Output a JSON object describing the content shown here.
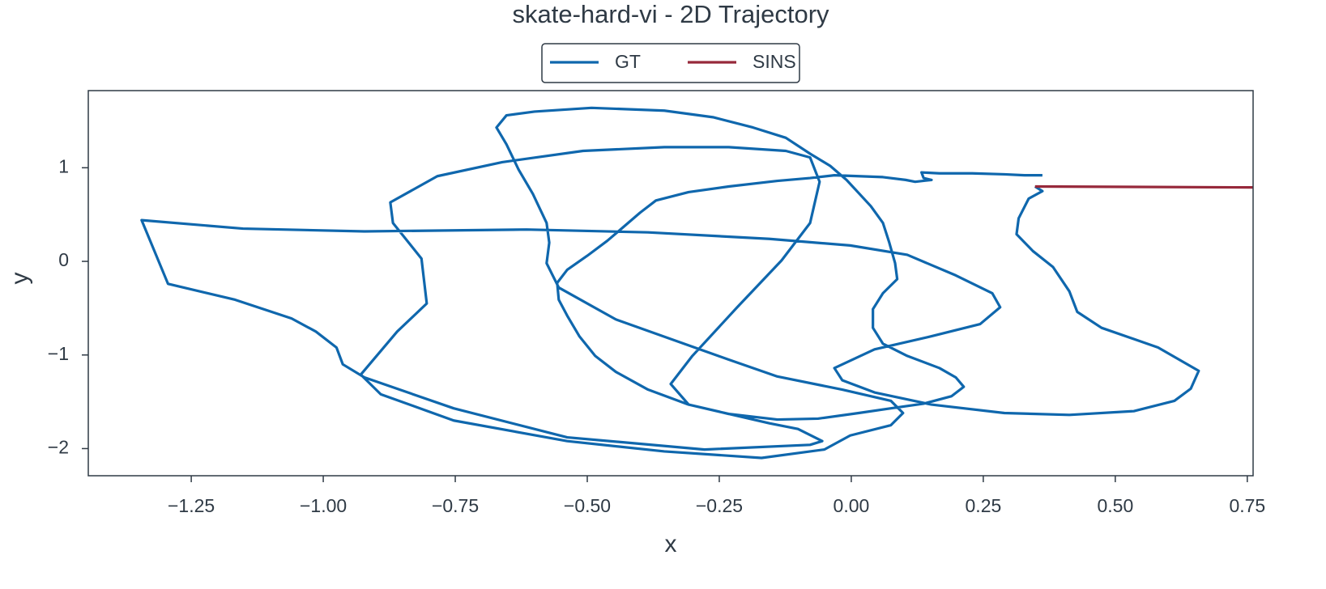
{
  "chart_data": {
    "type": "line",
    "title": "skate-hard-vi - 2D Trajectory",
    "x_label": "x",
    "y_label": "y",
    "xlim": [
      -1.445,
      0.761
    ],
    "ylim": [
      -2.29,
      1.824
    ],
    "xticks": [
      {
        "value": -1.25,
        "label": "−1.25"
      },
      {
        "value": -1.0,
        "label": "−1.00"
      },
      {
        "value": -0.75,
        "label": "−0.75"
      },
      {
        "value": -0.5,
        "label": "−0.50"
      },
      {
        "value": -0.25,
        "label": "−0.25"
      },
      {
        "value": 0,
        "label": "0.00"
      },
      0.25,
      {
        "value": 0.5,
        "label": "0.50"
      },
      0.75
    ],
    "yticks": [
      {
        "value": -2,
        "label": "−2"
      },
      {
        "value": -1,
        "label": "−1"
      },
      0,
      1
    ],
    "series": [
      {
        "name": "GT",
        "color": "#0f67ad",
        "x": [
          0.362,
          0.328,
          0.29,
          0.229,
          0.167,
          0.133,
          0.137,
          0.152,
          0.121,
          0.103,
          0.06,
          0.014,
          -0.032,
          -0.078,
          -0.14,
          -0.232,
          -0.308,
          -0.37,
          -0.4,
          -0.431,
          -0.462,
          -0.5,
          -0.538,
          -0.557,
          -0.554,
          -0.538,
          -0.515,
          -0.485,
          -0.446,
          -0.385,
          -0.308,
          -0.232,
          -0.14,
          -0.063,
          0.014,
          0.075,
          0.137,
          0.19,
          0.213,
          0.198,
          0.167,
          0.106,
          0.06,
          0.041,
          0.041,
          0.06,
          0.087,
          0.083,
          0.072,
          0.06,
          0.037,
          0.014,
          -0.009,
          -0.04,
          -0.078,
          -0.124,
          -0.186,
          -0.262,
          -0.354,
          -0.492,
          -0.6,
          -0.653,
          -0.672,
          -0.653,
          -0.63,
          -0.603,
          -0.577,
          -0.572,
          -0.577,
          -0.554,
          -0.446,
          -0.232,
          -0.14,
          -0.017,
          0.075,
          0.098,
          0.075,
          -0.002,
          -0.051,
          -0.17,
          -0.354,
          -0.538,
          -0.753,
          -0.891,
          -0.929,
          -0.86,
          -0.804,
          -0.814,
          -0.868,
          -0.873,
          -0.784,
          -0.661,
          -0.508,
          -0.354,
          -0.232,
          -0.124,
          -0.078,
          -0.06,
          -0.078,
          -0.132,
          -0.216,
          -0.301,
          -0.342,
          -0.308,
          -0.155,
          -0.101,
          -0.055,
          -0.078,
          -0.278,
          -0.538,
          -0.753,
          -0.922,
          -0.963,
          -0.975,
          -1.014,
          -1.06,
          -1.167,
          -1.294,
          -1.344,
          -1.152,
          -0.922,
          -0.615,
          -0.385,
          -0.155,
          -0.002,
          0.106,
          0.198,
          0.267,
          0.282,
          0.244,
          0.152,
          0.044,
          -0.032,
          -0.017,
          0.044,
          0.152,
          0.29,
          0.413,
          0.535,
          0.612,
          0.643,
          0.658,
          0.581,
          0.474,
          0.428,
          0.413,
          0.382,
          0.344,
          0.313,
          0.317,
          0.336,
          0.362,
          0.348
        ],
        "y": [
          0.92,
          0.92,
          0.93,
          0.94,
          0.94,
          0.95,
          0.89,
          0.87,
          0.85,
          0.87,
          0.9,
          0.91,
          0.92,
          0.89,
          0.86,
          0.8,
          0.74,
          0.65,
          0.52,
          0.37,
          0.22,
          0.06,
          -0.09,
          -0.23,
          -0.41,
          -0.58,
          -0.8,
          -1.01,
          -1.18,
          -1.37,
          -1.53,
          -1.63,
          -1.69,
          -1.68,
          -1.62,
          -1.57,
          -1.52,
          -1.44,
          -1.34,
          -1.24,
          -1.14,
          -1.01,
          -0.88,
          -0.71,
          -0.51,
          -0.34,
          -0.19,
          -0.02,
          0.2,
          0.41,
          0.59,
          0.73,
          0.87,
          1.02,
          1.15,
          1.32,
          1.43,
          1.54,
          1.61,
          1.64,
          1.6,
          1.56,
          1.43,
          1.25,
          0.98,
          0.72,
          0.41,
          0.2,
          -0.02,
          -0.28,
          -0.62,
          -1.05,
          -1.23,
          -1.37,
          -1.49,
          -1.62,
          -1.75,
          -1.86,
          -2.01,
          -2.1,
          -2.03,
          -1.92,
          -1.7,
          -1.42,
          -1.21,
          -0.75,
          -0.45,
          0.03,
          0.41,
          0.63,
          0.91,
          1.06,
          1.18,
          1.22,
          1.22,
          1.18,
          1.11,
          0.85,
          0.41,
          0.01,
          -0.49,
          -1.01,
          -1.31,
          -1.53,
          -1.73,
          -1.79,
          -1.92,
          -1.96,
          -2.01,
          -1.88,
          -1.57,
          -1.24,
          -1.1,
          -0.92,
          -0.75,
          -0.61,
          -0.41,
          -0.24,
          0.44,
          0.35,
          0.32,
          0.34,
          0.31,
          0.24,
          0.17,
          0.07,
          -0.15,
          -0.34,
          -0.49,
          -0.67,
          -0.8,
          -0.94,
          -1.14,
          -1.27,
          -1.4,
          -1.53,
          -1.62,
          -1.64,
          -1.6,
          -1.49,
          -1.36,
          -1.17,
          -0.92,
          -0.71,
          -0.54,
          -0.32,
          -0.06,
          0.11,
          0.29,
          0.46,
          0.67,
          0.75,
          0.8
        ]
      },
      {
        "name": "SINS",
        "color": "#97293b",
        "x": [
          0.348,
          0.761
        ],
        "y": [
          0.8,
          0.79
        ]
      }
    ]
  }
}
